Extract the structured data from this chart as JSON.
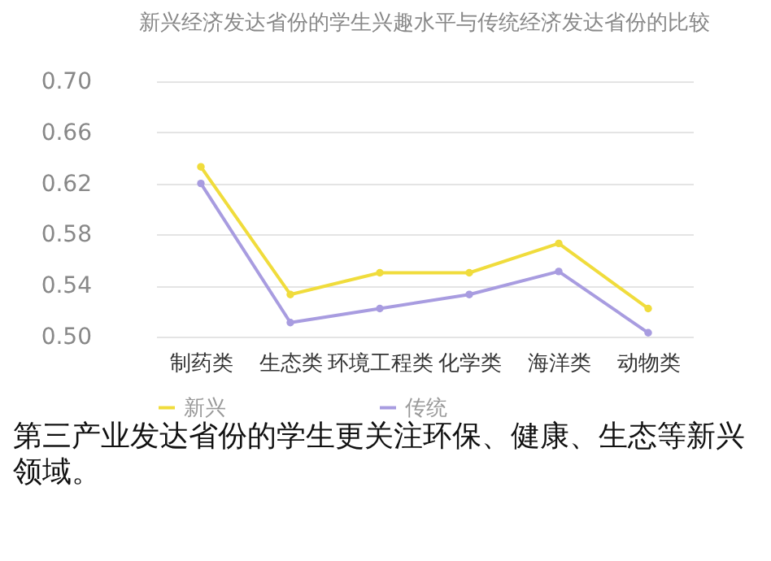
{
  "chart_data": {
    "type": "line",
    "title": "新兴经济发达省份的学生兴趣水平与传统经济发达省份的比较",
    "categories": [
      "制药类",
      "生态类",
      "环境工程类",
      "化学类",
      "海洋类",
      "动物类"
    ],
    "series": [
      {
        "name": "新兴",
        "color": "#f0dc3c",
        "values": [
          0.633,
          0.533,
          0.55,
          0.55,
          0.573,
          0.522
        ]
      },
      {
        "name": "传统",
        "color": "#a89ce0",
        "values": [
          0.62,
          0.511,
          0.522,
          0.533,
          0.551,
          0.503
        ]
      }
    ],
    "ylim": [
      0.5,
      0.7
    ],
    "yticks": [
      {
        "value": 0.5,
        "label": "0.50"
      },
      {
        "value": 0.54,
        "label": "0.54"
      },
      {
        "value": 0.58,
        "label": "0.58"
      },
      {
        "value": 0.62,
        "label": "0.62"
      },
      {
        "value": 0.66,
        "label": "0.66"
      },
      {
        "value": 0.7,
        "label": "0.70"
      }
    ],
    "grid": "y",
    "legend": "bottom",
    "marker": "circle",
    "annotations": [
      "第三产业发达省份的学生更关注环保、健康、生态等新兴领域。"
    ]
  }
}
